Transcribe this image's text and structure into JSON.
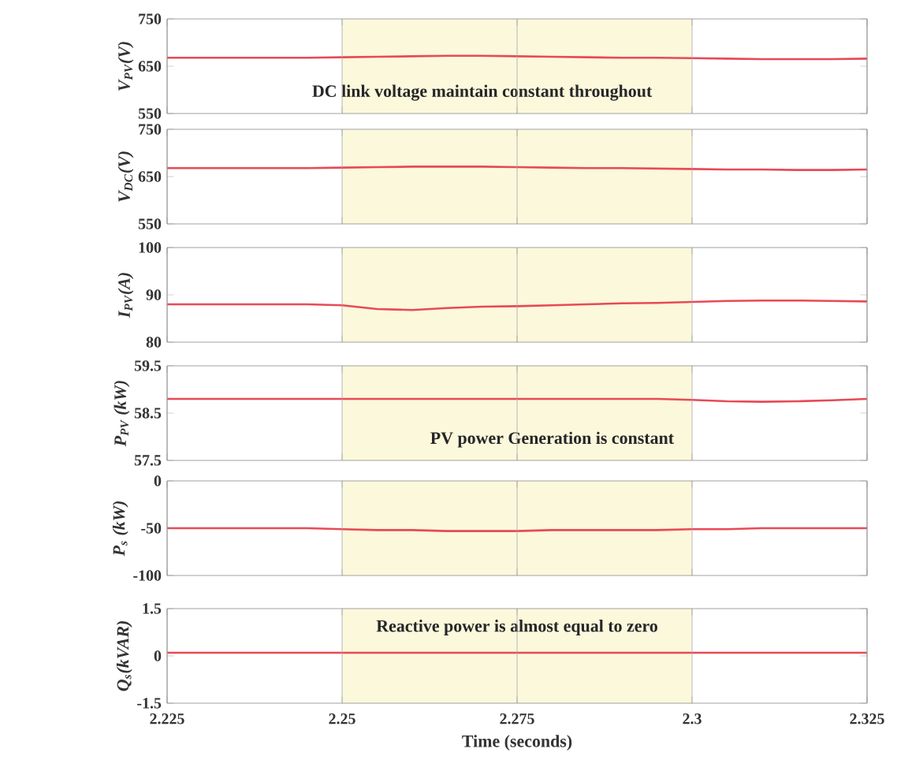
{
  "chart_data": [
    {
      "type": "line",
      "ylabel": "V$_{PV}$(V)",
      "x": [
        2.225,
        2.23,
        2.235,
        2.24,
        2.245,
        2.25,
        2.255,
        2.26,
        2.265,
        2.27,
        2.275,
        2.28,
        2.285,
        2.29,
        2.295,
        2.3,
        2.305,
        2.31,
        2.315,
        2.32,
        2.325
      ],
      "series": [
        {
          "color": "#e84a55",
          "values": [
            668,
            668,
            668,
            668,
            668,
            669,
            670,
            671,
            672,
            672,
            671,
            670,
            669,
            668,
            668,
            667,
            666,
            665,
            665,
            665,
            666
          ]
        }
      ],
      "xlim": [
        2.225,
        2.325
      ],
      "xticks": [
        2.225,
        2.25,
        2.275,
        2.3,
        2.325
      ],
      "ylim": [
        550,
        750
      ],
      "yticks": [
        550,
        650,
        750
      ],
      "grid": "x",
      "tick_labels": "y",
      "bands": [
        {
          "axis": "x",
          "from": 2.25,
          "to": 2.3,
          "color": "#fbf8dc"
        }
      ],
      "annotations": [
        "DC link voltage maintain constant throughout"
      ]
    },
    {
      "type": "line",
      "ylabel": "V$_{DC}$(V)",
      "x": [
        2.225,
        2.23,
        2.235,
        2.24,
        2.245,
        2.25,
        2.255,
        2.26,
        2.265,
        2.27,
        2.275,
        2.28,
        2.285,
        2.29,
        2.295,
        2.3,
        2.305,
        2.31,
        2.315,
        2.32,
        2.325
      ],
      "series": [
        {
          "color": "#e84a55",
          "values": [
            668,
            668,
            668,
            668,
            668,
            669,
            670,
            671,
            671,
            671,
            670,
            669,
            668,
            668,
            667,
            666,
            665,
            665,
            664,
            664,
            665
          ]
        }
      ],
      "xlim": [
        2.225,
        2.325
      ],
      "xticks": [
        2.225,
        2.25,
        2.275,
        2.3,
        2.325
      ],
      "ylim": [
        550,
        750
      ],
      "yticks": [
        550,
        650,
        750
      ],
      "grid": "x",
      "tick_labels": "y",
      "bands": [
        {
          "axis": "x",
          "from": 2.25,
          "to": 2.3,
          "color": "#fbf8dc"
        }
      ]
    },
    {
      "type": "line",
      "ylabel": "I$_{PV}$(A)",
      "x": [
        2.225,
        2.23,
        2.235,
        2.24,
        2.245,
        2.25,
        2.255,
        2.26,
        2.265,
        2.27,
        2.275,
        2.28,
        2.285,
        2.29,
        2.295,
        2.3,
        2.305,
        2.31,
        2.315,
        2.32,
        2.325
      ],
      "series": [
        {
          "color": "#e84a55",
          "values": [
            88,
            88,
            88,
            88,
            88,
            87.8,
            87,
            86.8,
            87.2,
            87.5,
            87.6,
            87.8,
            88,
            88.2,
            88.3,
            88.5,
            88.7,
            88.8,
            88.8,
            88.7,
            88.6
          ]
        }
      ],
      "xlim": [
        2.225,
        2.325
      ],
      "xticks": [
        2.225,
        2.25,
        2.275,
        2.3,
        2.325
      ],
      "ylim": [
        80,
        100
      ],
      "yticks": [
        80,
        90,
        100
      ],
      "grid": "x",
      "tick_labels": "y",
      "bands": [
        {
          "axis": "x",
          "from": 2.25,
          "to": 2.3,
          "color": "#fbf8dc"
        }
      ]
    },
    {
      "type": "line",
      "ylabel": "P$_{PV}$ (kW)",
      "x": [
        2.225,
        2.23,
        2.235,
        2.24,
        2.245,
        2.25,
        2.255,
        2.26,
        2.265,
        2.27,
        2.275,
        2.28,
        2.285,
        2.29,
        2.295,
        2.3,
        2.305,
        2.31,
        2.315,
        2.32,
        2.325
      ],
      "series": [
        {
          "color": "#e84a55",
          "values": [
            58.8,
            58.8,
            58.8,
            58.8,
            58.8,
            58.8,
            58.8,
            58.8,
            58.8,
            58.8,
            58.8,
            58.8,
            58.8,
            58.8,
            58.8,
            58.78,
            58.75,
            58.74,
            58.75,
            58.77,
            58.8
          ]
        }
      ],
      "xlim": [
        2.225,
        2.325
      ],
      "xticks": [
        2.225,
        2.25,
        2.275,
        2.3,
        2.325
      ],
      "ylim": [
        57.5,
        59.5
      ],
      "yticks": [
        57.5,
        58.5,
        59.5
      ],
      "grid": "x",
      "tick_labels": "y",
      "bands": [
        {
          "axis": "x",
          "from": 2.25,
          "to": 2.3,
          "color": "#fbf8dc"
        }
      ],
      "annotations": [
        "PV power Generation is constant"
      ]
    },
    {
      "type": "line",
      "ylabel": "P$_{s}$ (kW)",
      "x": [
        2.225,
        2.23,
        2.235,
        2.24,
        2.245,
        2.25,
        2.255,
        2.26,
        2.265,
        2.27,
        2.275,
        2.28,
        2.285,
        2.29,
        2.295,
        2.3,
        2.305,
        2.31,
        2.315,
        2.32,
        2.325
      ],
      "series": [
        {
          "color": "#e84a55",
          "values": [
            -50,
            -50,
            -50,
            -50,
            -50,
            -51,
            -52,
            -52,
            -53,
            -53,
            -53,
            -52,
            -52,
            -52,
            -52,
            -51,
            -51,
            -50,
            -50,
            -50,
            -50
          ]
        }
      ],
      "xlim": [
        2.225,
        2.325
      ],
      "xticks": [
        2.225,
        2.25,
        2.275,
        2.3,
        2.325
      ],
      "ylim": [
        -100,
        0
      ],
      "yticks": [
        -100,
        -50,
        0
      ],
      "grid": "x",
      "tick_labels": "y",
      "bands": [
        {
          "axis": "x",
          "from": 2.25,
          "to": 2.3,
          "color": "#fbf8dc"
        }
      ]
    },
    {
      "type": "line",
      "ylabel": "Q$_{s}$(kVAR)",
      "xlabel": "Time (seconds)",
      "x": [
        2.225,
        2.23,
        2.235,
        2.24,
        2.245,
        2.25,
        2.255,
        2.26,
        2.265,
        2.27,
        2.275,
        2.28,
        2.285,
        2.29,
        2.295,
        2.3,
        2.305,
        2.31,
        2.315,
        2.32,
        2.325
      ],
      "series": [
        {
          "color": "#e84a55",
          "values": [
            0.1,
            0.1,
            0.1,
            0.1,
            0.1,
            0.1,
            0.1,
            0.1,
            0.1,
            0.1,
            0.1,
            0.1,
            0.1,
            0.1,
            0.1,
            0.1,
            0.1,
            0.1,
            0.1,
            0.1,
            0.1
          ]
        }
      ],
      "xlim": [
        2.225,
        2.325
      ],
      "xticks": [
        2.225,
        2.25,
        2.275,
        2.3,
        2.325
      ],
      "ylim": [
        -1.5,
        1.5
      ],
      "yticks": [
        -1.5,
        0,
        1.5
      ],
      "grid": "x",
      "bands": [
        {
          "axis": "x",
          "from": 2.25,
          "to": 2.3,
          "color": "#fbf8dc"
        }
      ],
      "annotations": [
        "Reactive power is almost equal to zero"
      ]
    }
  ]
}
